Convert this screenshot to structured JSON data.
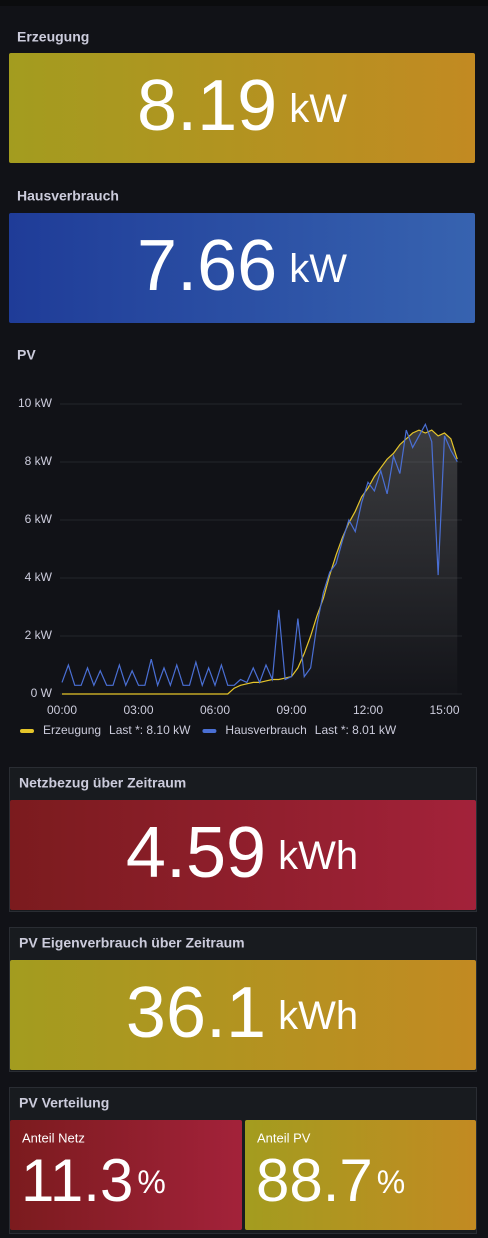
{
  "stats": [
    {
      "title": "Erzeugung",
      "value": 8.19,
      "unit": "kW",
      "colors": [
        "#a39c1f",
        "#c28a22"
      ]
    },
    {
      "title": "Hausverbrauch",
      "value": 7.66,
      "unit": "kW",
      "colors": [
        "#1f3c98",
        "#3763b0"
      ]
    },
    {
      "title": "Netzbezug über Zeitraum",
      "value": 4.59,
      "unit": "kWh",
      "colors": [
        "#7b1b1e",
        "#a3223a"
      ]
    },
    {
      "title": "PV Eigenverbrauch über Zeitraum",
      "value": 36.1,
      "unit": "kWh",
      "colors": [
        "#a39c1f",
        "#c28a22"
      ]
    }
  ],
  "distribution": {
    "title": "PV Verteilung",
    "items": [
      {
        "title": "Anteil Netz",
        "value": 11.3,
        "unit": "%",
        "colors": [
          "#7b1b1e",
          "#a3223a"
        ]
      },
      {
        "title": "Anteil PV",
        "value": 88.7,
        "unit": "%",
        "colors": [
          "#a39c1f",
          "#c28a22"
        ]
      }
    ]
  },
  "chart_data": {
    "type": "line",
    "title": "PV",
    "x": [
      "00:00",
      "00:15",
      "00:30",
      "00:45",
      "01:00",
      "01:15",
      "01:30",
      "01:45",
      "02:00",
      "02:15",
      "02:30",
      "02:45",
      "03:00",
      "03:15",
      "03:30",
      "03:45",
      "04:00",
      "04:15",
      "04:30",
      "04:45",
      "05:00",
      "05:15",
      "05:30",
      "05:45",
      "06:00",
      "06:15",
      "06:30",
      "06:45",
      "07:00",
      "07:15",
      "07:30",
      "07:45",
      "08:00",
      "08:15",
      "08:30",
      "08:45",
      "09:00",
      "09:15",
      "09:30",
      "09:45",
      "10:00",
      "10:15",
      "10:30",
      "10:45",
      "11:00",
      "11:15",
      "11:30",
      "11:45",
      "12:00",
      "12:15",
      "12:30",
      "12:45",
      "13:00",
      "13:15",
      "13:30",
      "13:45",
      "14:00",
      "14:15",
      "14:30",
      "14:45",
      "15:00",
      "15:15",
      "15:30"
    ],
    "xticks": [
      "00:00",
      "03:00",
      "06:00",
      "09:00",
      "12:00",
      "15:00"
    ],
    "ylim": [
      0,
      10
    ],
    "yticks": [
      {
        "value": 0,
        "label": "0 W"
      },
      {
        "value": 2,
        "label": "2 kW"
      },
      {
        "value": 4,
        "label": "4 kW"
      },
      {
        "value": 6,
        "label": "6 kW"
      },
      {
        "value": 8,
        "label": "8 kW"
      },
      {
        "value": 10,
        "label": "10 kW"
      }
    ],
    "grid": true,
    "series": [
      {
        "name": "Erzeugung",
        "color": "#e5c52a",
        "fill": true,
        "last_label": "Last *: 8.10 kW",
        "values": [
          0,
          0,
          0,
          0,
          0,
          0,
          0,
          0,
          0,
          0,
          0,
          0,
          0,
          0,
          0,
          0,
          0,
          0,
          0,
          0,
          0,
          0,
          0,
          0,
          0,
          0,
          0,
          0.2,
          0.3,
          0.35,
          0.4,
          0.4,
          0.45,
          0.5,
          0.5,
          0.55,
          0.6,
          0.9,
          1.4,
          2.0,
          2.7,
          3.3,
          4.1,
          4.8,
          5.4,
          5.9,
          6.3,
          6.8,
          7.1,
          7.5,
          7.8,
          8.1,
          8.3,
          8.6,
          8.8,
          9.0,
          9.1,
          9.0,
          9.1,
          8.9,
          9.0,
          8.8,
          8.1
        ]
      },
      {
        "name": "Hausverbrauch",
        "color": "#4a6fd4",
        "fill": false,
        "last_label": "Last *: 8.01 kW",
        "values": [
          0.4,
          1.0,
          0.3,
          0.3,
          0.9,
          0.3,
          0.8,
          0.3,
          0.3,
          1.0,
          0.3,
          0.8,
          0.3,
          0.3,
          1.2,
          0.3,
          0.9,
          0.3,
          1.0,
          0.3,
          0.3,
          1.1,
          0.3,
          0.9,
          0.3,
          1.0,
          0.3,
          0.3,
          0.5,
          0.4,
          0.9,
          0.4,
          1.0,
          0.5,
          2.9,
          0.5,
          0.6,
          2.6,
          0.6,
          0.9,
          2.4,
          3.5,
          4.2,
          4.5,
          5.3,
          6.0,
          5.6,
          6.6,
          7.3,
          7.0,
          7.7,
          6.9,
          8.2,
          7.6,
          9.1,
          8.5,
          8.9,
          9.3,
          8.7,
          4.1,
          8.9,
          8.4,
          8.01
        ]
      }
    ]
  }
}
